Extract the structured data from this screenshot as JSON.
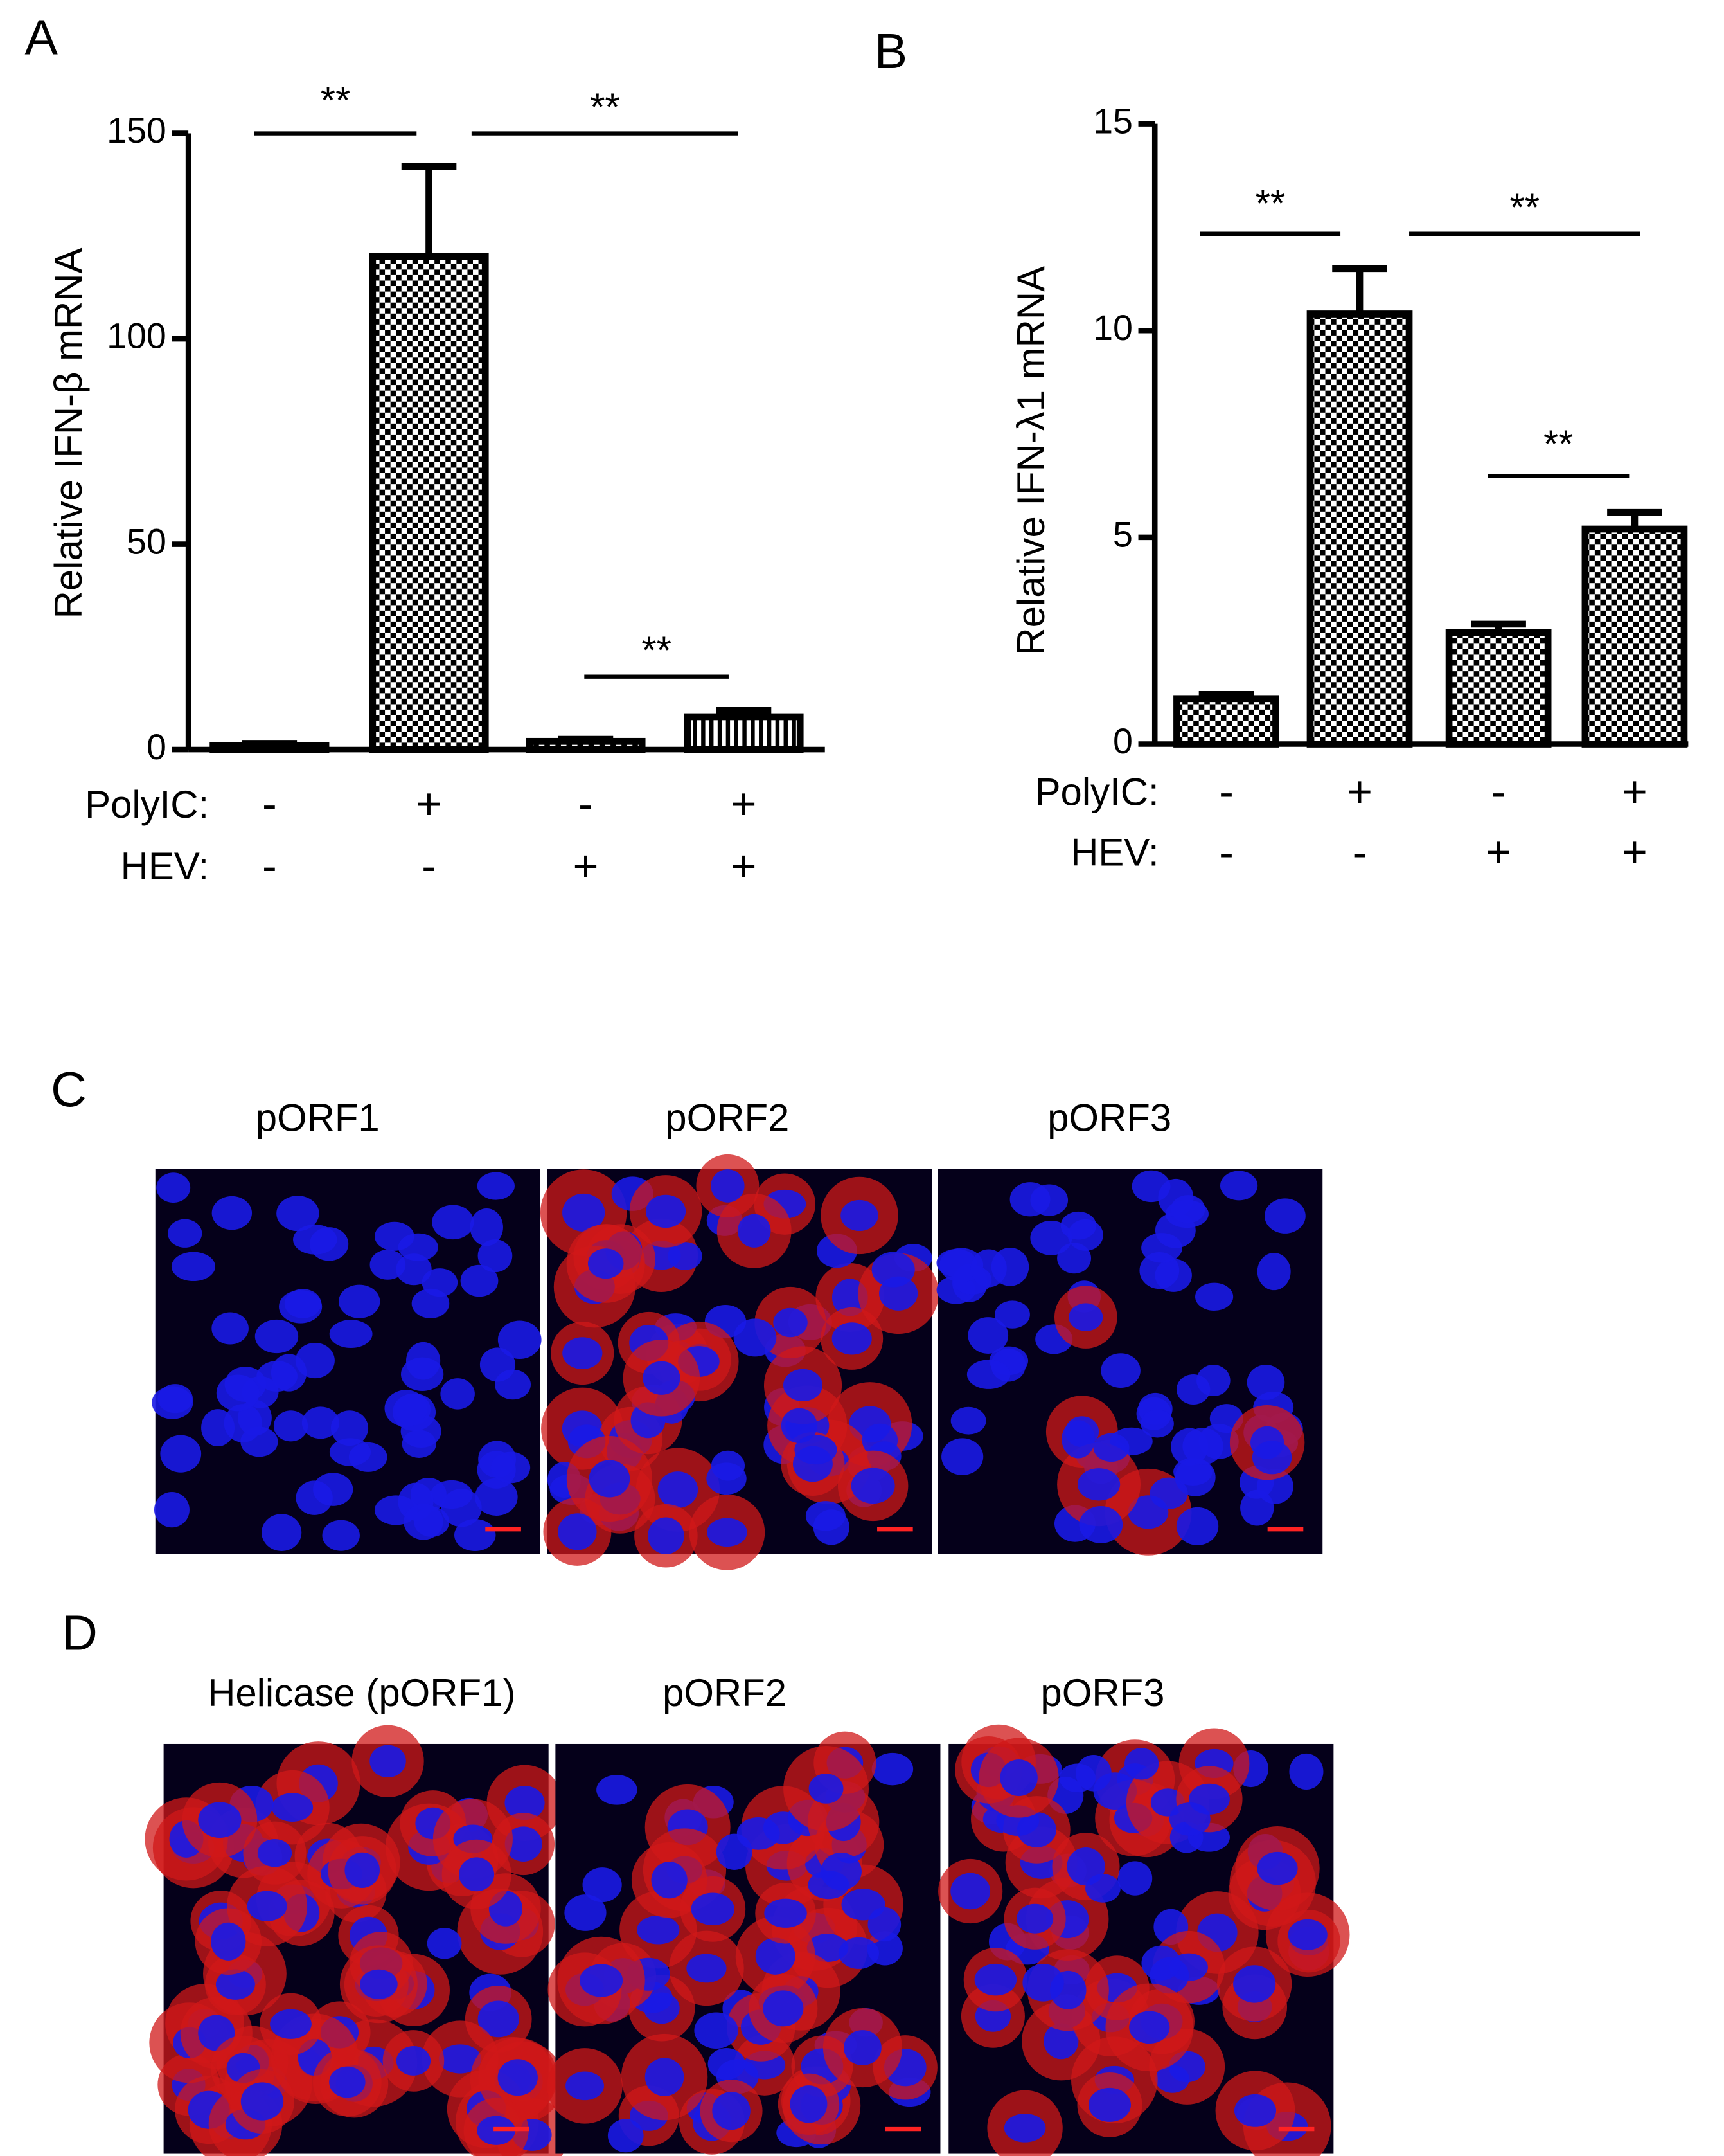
{
  "chart_data": [
    {
      "type": "bar",
      "label": "A",
      "ylabel": "Relative IFN-β mRNA",
      "values": [
        1,
        120,
        2,
        8
      ],
      "errors": [
        0.5,
        22,
        0.5,
        1.5
      ],
      "patterns": [
        "check",
        "check",
        "check",
        "stripe"
      ],
      "color": "#000000",
      "ylim": [
        0,
        150
      ],
      "yticks": [
        0,
        50,
        100,
        150
      ],
      "conditions": [
        {
          "name": "PolyIC:",
          "levels": [
            "-",
            "+",
            "-",
            "+"
          ]
        },
        {
          "name": "HEV:",
          "levels": [
            "-",
            "-",
            "+",
            "+"
          ]
        }
      ],
      "annotations": [
        "**",
        "**",
        "**"
      ]
    },
    {
      "type": "bar",
      "label": "B",
      "ylabel": "Relative IFN-λ1 mRNA",
      "values": [
        1.1,
        10.4,
        2.7,
        5.2
      ],
      "errors": [
        0.1,
        1.1,
        0.2,
        0.4
      ],
      "patterns": [
        "check",
        "check",
        "check",
        "check"
      ],
      "color": "#000000",
      "ylim": [
        0,
        15
      ],
      "yticks": [
        0,
        5,
        10,
        15
      ],
      "conditions": [
        {
          "name": "PolyIC:",
          "levels": [
            "-",
            "+",
            "-",
            "+"
          ]
        },
        {
          "name": "HEV:",
          "levels": [
            "-",
            "-",
            "+",
            "+"
          ]
        }
      ],
      "annotations": [
        "**",
        "**",
        "**"
      ]
    }
  ],
  "panels": [
    {
      "label": "C",
      "titles": [
        "pORF1",
        "pORF2",
        "pORF3"
      ]
    },
    {
      "label": "D",
      "titles": [
        "Helicase (pORF1)",
        "pORF2",
        "pORF3"
      ]
    }
  ]
}
